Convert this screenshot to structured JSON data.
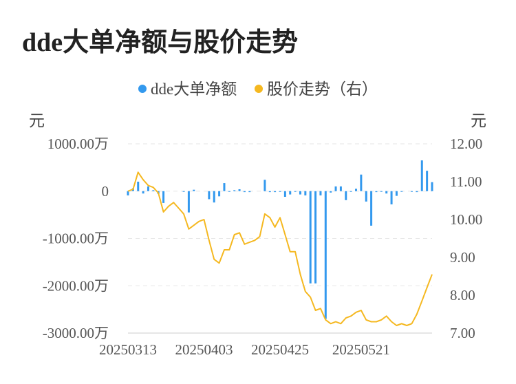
{
  "chart_data": {
    "type": "bar+line",
    "title": "dde大单净额与股价走势",
    "legend": [
      "dde大单净额",
      "股价走势（右）"
    ],
    "left_unit": "元",
    "right_unit": "元",
    "left_ticks": [
      "1000.00万",
      "0",
      "-1000.00万",
      "-2000.00万",
      "-3000.00万"
    ],
    "right_ticks": [
      "12.00",
      "11.00",
      "10.00",
      "9.00",
      "8.00",
      "7.00"
    ],
    "x_ticks": [
      "20250313",
      "20250403",
      "20250425",
      "20250521"
    ],
    "ylim_left": [
      -3000,
      1000
    ],
    "ylim_right": [
      7.0,
      12.0
    ],
    "colors": {
      "bar": "#3399ee",
      "line": "#f5b820",
      "grid": "#e6e6e6",
      "text": "#555555"
    },
    "bars": [
      -90,
      60,
      200,
      -50,
      100,
      20,
      -60,
      -250,
      0,
      0,
      0,
      -10,
      -450,
      30,
      0,
      0,
      -170,
      -240,
      -110,
      170,
      -10,
      20,
      40,
      -20,
      -20,
      0,
      0,
      240,
      -20,
      -20,
      -10,
      -120,
      -70,
      -10,
      -70,
      -90,
      -1950,
      -1950,
      -90,
      -2700,
      -30,
      100,
      100,
      -190,
      -10,
      50,
      350,
      -220,
      -730,
      -20,
      -10,
      -50,
      -280,
      -100,
      -10,
      0,
      -10,
      -20,
      650,
      430,
      190
    ],
    "prices": [
      10.75,
      10.8,
      11.25,
      11.05,
      10.9,
      10.85,
      10.7,
      10.2,
      10.35,
      10.45,
      10.3,
      10.15,
      9.75,
      9.85,
      9.95,
      10.0,
      9.45,
      8.95,
      8.85,
      9.2,
      9.2,
      9.6,
      9.65,
      9.35,
      9.4,
      9.45,
      9.55,
      10.15,
      10.05,
      9.8,
      10.05,
      9.6,
      9.15,
      9.15,
      8.55,
      8.1,
      7.95,
      7.6,
      7.65,
      7.35,
      7.25,
      7.3,
      7.25,
      7.4,
      7.45,
      7.55,
      7.6,
      7.35,
      7.3,
      7.3,
      7.35,
      7.45,
      7.3,
      7.2,
      7.25,
      7.2,
      7.25,
      7.5,
      7.85,
      8.2,
      8.55
    ]
  }
}
